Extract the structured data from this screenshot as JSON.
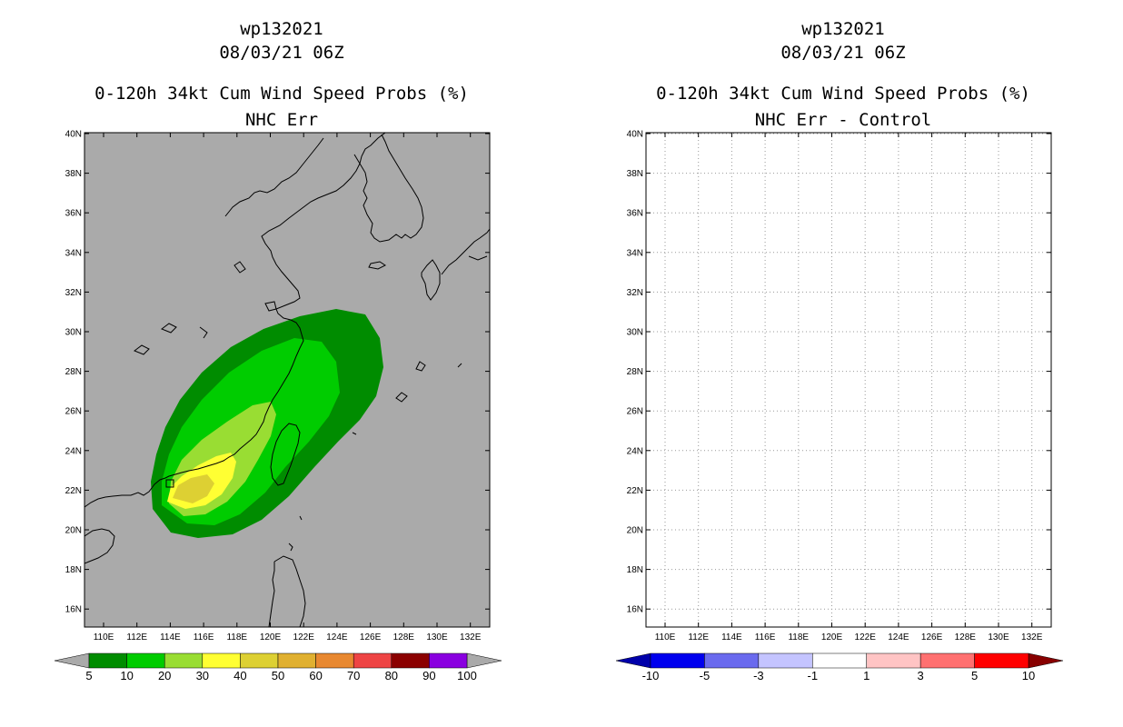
{
  "left_panel": {
    "header_line1": "wp132021",
    "header_line2": "08/03/21 06Z",
    "title_line1": "0-120h 34kt Cum Wind Speed Probs (%)",
    "title_line2": "NHC Err",
    "colorbar": {
      "labels": [
        "5",
        "10",
        "20",
        "30",
        "40",
        "50",
        "60",
        "70",
        "80",
        "90",
        "100"
      ],
      "colors": [
        "#008c00",
        "#00cc00",
        "#99dd33",
        "#ffff33",
        "#ddd033",
        "#e0b030",
        "#e88830",
        "#ee4444",
        "#8b0000",
        "#8a00e0"
      ],
      "under_color": "#aaaaaa",
      "over_color": "#aaaaaa"
    }
  },
  "right_panel": {
    "header_line1": "wp132021",
    "header_line2": "08/03/21 06Z",
    "title_line1": "0-120h 34kt Cum Wind Speed Probs (%)",
    "title_line2": "NHC Err - Control",
    "colorbar": {
      "labels": [
        "-10",
        "-5",
        "-3",
        "-1",
        "1",
        "3",
        "5",
        "10"
      ],
      "colors": [
        "#0000ee",
        "#6a6aee",
        "#c4c4ff",
        "#ffffff",
        "#ffc4c4",
        "#ff7070",
        "#ff0000"
      ],
      "under_color": "#0000aa",
      "over_color": "#880000"
    }
  },
  "axes": {
    "lat_labels": [
      "40N",
      "38N",
      "36N",
      "34N",
      "32N",
      "30N",
      "28N",
      "26N",
      "24N",
      "22N",
      "20N",
      "18N",
      "16N"
    ],
    "lon_labels": [
      "110E",
      "112E",
      "114E",
      "116E",
      "118E",
      "120E",
      "122E",
      "124E",
      "126E",
      "128E",
      "130E",
      "132E"
    ]
  },
  "colors": {
    "land_background": "#aaaaaa",
    "prob_5": "#008c00",
    "prob_10": "#00cc00",
    "prob_20": "#99dd33",
    "prob_30": "#ffff33",
    "prob_40": "#ddd033",
    "grid": "#999999"
  }
}
